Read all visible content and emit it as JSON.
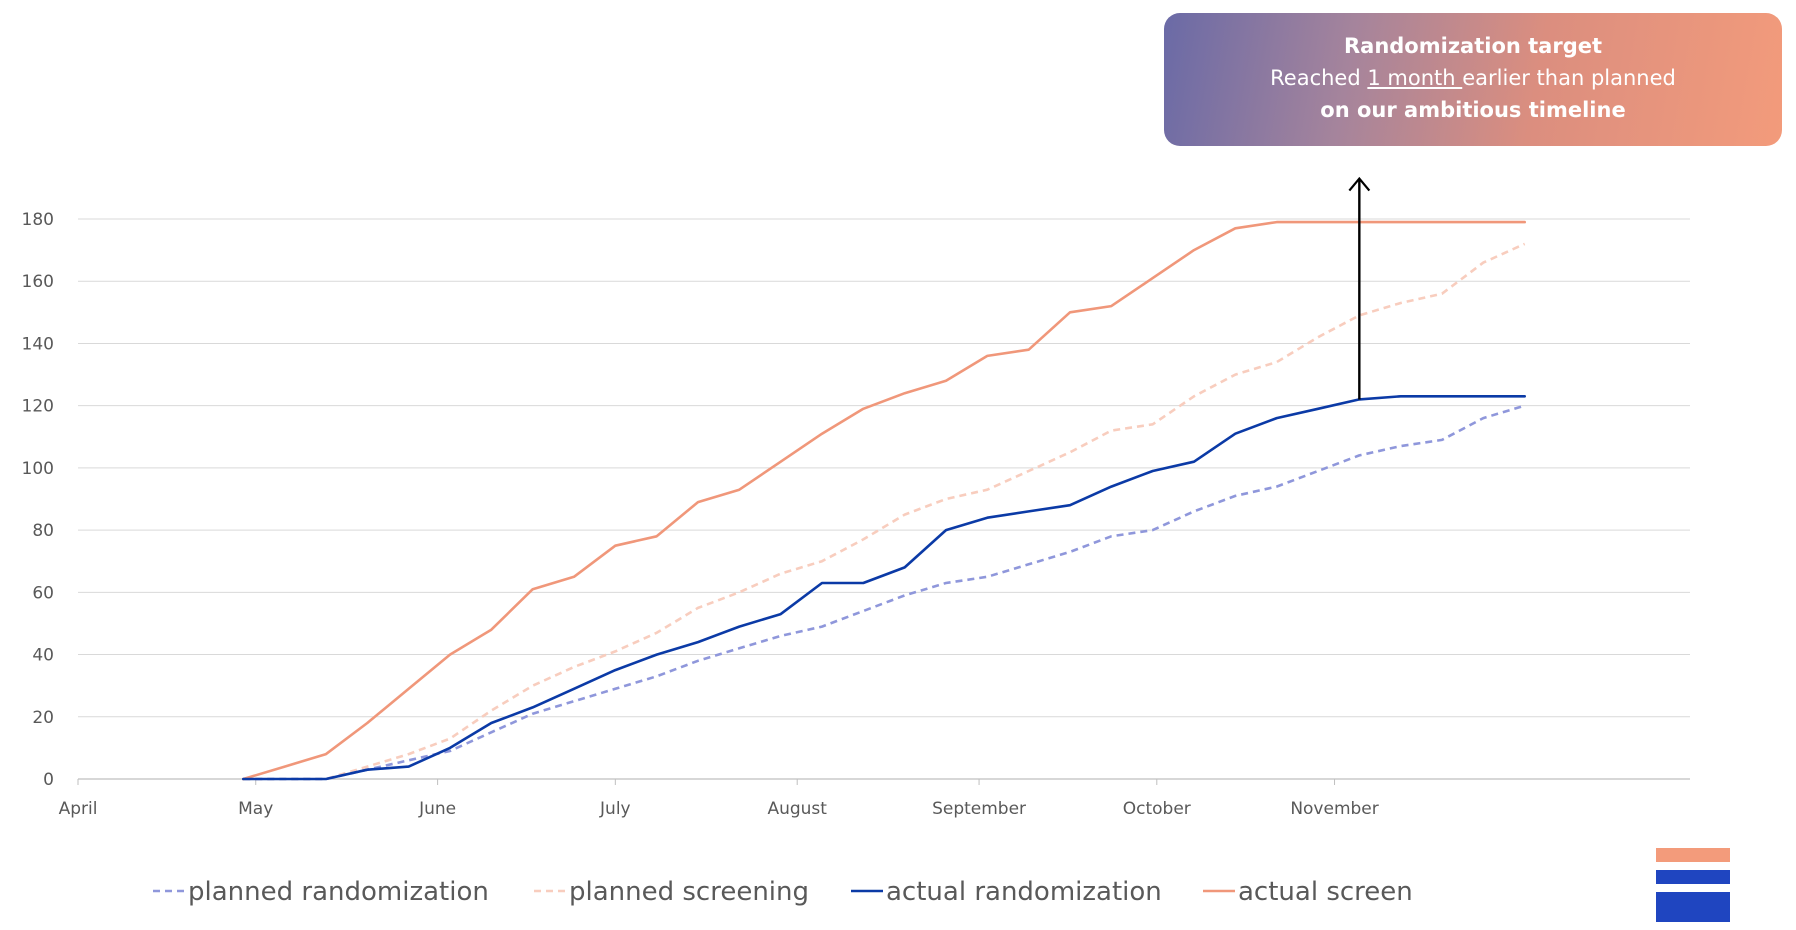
{
  "callout": {
    "title": "Randomization target",
    "line2_prefix": "Reached ",
    "line2_underline": "1 month ",
    "line2_suffix": "earlier than planned",
    "line3": "on our ambitious timeline"
  },
  "colors": {
    "planned_randomization": "#8f97db",
    "planned_screening": "#f8cdbe",
    "actual_randomization": "#0b3aa6",
    "actual_screen": "#f0977a",
    "grid": "#d9d9d9",
    "axis": "#bfbfbf"
  },
  "chart_data": {
    "type": "line",
    "title": "",
    "xlabel": "",
    "ylabel": "",
    "ylim": [
      0,
      180
    ],
    "yticks": [
      0,
      20,
      40,
      60,
      80,
      100,
      120,
      140,
      160,
      180
    ],
    "xlim": [
      0,
      39
    ],
    "x_tick_labels": [
      "April",
      "May",
      "June",
      "July",
      "August",
      "September",
      "October",
      "November"
    ],
    "x_tick_positions": [
      0,
      4.3,
      8.7,
      13.0,
      17.4,
      21.8,
      26.1,
      30.4
    ],
    "legend_position": "bottom",
    "x": [
      0,
      1,
      2,
      3,
      4,
      5,
      6,
      7,
      8,
      9,
      10,
      11,
      12,
      13,
      14,
      15,
      16,
      17,
      18,
      19,
      20,
      21,
      22,
      23,
      24,
      25,
      26,
      27,
      28,
      29,
      30,
      31,
      32,
      33,
      34,
      35,
      36,
      37,
      38,
      39
    ],
    "series": [
      {
        "name": "planned randomization",
        "style": "dashed",
        "values": [
          null,
          null,
          null,
          null,
          0,
          0,
          0,
          3,
          6,
          9,
          15,
          21,
          25,
          29,
          33,
          38,
          42,
          46,
          49,
          54,
          59,
          63,
          65,
          69,
          73,
          78,
          80,
          86,
          91,
          94,
          99,
          104,
          107,
          109,
          116,
          120,
          null,
          null,
          null,
          null
        ]
      },
      {
        "name": "planned screening",
        "style": "dashed",
        "values": [
          null,
          null,
          null,
          null,
          0,
          0,
          0,
          4,
          8,
          13,
          22,
          30,
          36,
          41,
          47,
          55,
          60,
          66,
          70,
          77,
          85,
          90,
          93,
          99,
          105,
          112,
          114,
          123,
          130,
          134,
          142,
          149,
          153,
          156,
          166,
          172,
          null,
          null,
          null,
          null
        ]
      },
      {
        "name": "actual randomization",
        "style": "solid",
        "values": [
          null,
          null,
          null,
          null,
          0,
          0,
          0,
          3,
          4,
          10,
          18,
          23,
          29,
          35,
          40,
          44,
          49,
          53,
          63,
          63,
          68,
          80,
          84,
          86,
          88,
          94,
          99,
          102,
          111,
          116,
          119,
          122,
          123,
          123,
          123,
          123,
          null,
          null,
          null,
          null
        ]
      },
      {
        "name": "actual screen",
        "style": "solid",
        "values": [
          null,
          null,
          null,
          null,
          0,
          4,
          8,
          18,
          29,
          40,
          48,
          61,
          65,
          75,
          78,
          89,
          93,
          102,
          111,
          119,
          124,
          128,
          136,
          138,
          150,
          152,
          161,
          170,
          177,
          179,
          179,
          179,
          179,
          179,
          179,
          179,
          null,
          null,
          null,
          null
        ]
      }
    ],
    "annotations": [
      {
        "type": "arrow",
        "x": 31,
        "from": 122,
        "to": 193
      }
    ]
  }
}
